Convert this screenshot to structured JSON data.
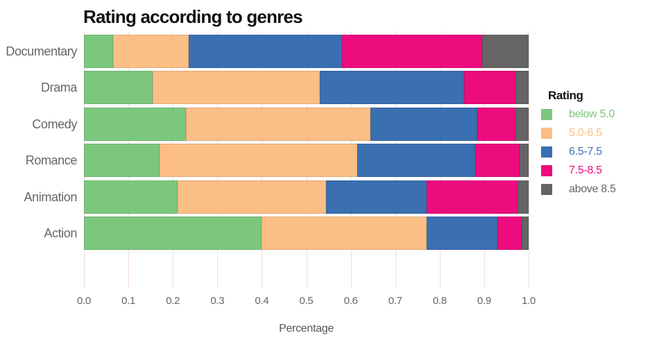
{
  "chart_data": {
    "type": "bar",
    "variant": "horizontal-stacked",
    "title": "Rating according to genres",
    "xlabel": "Percentage",
    "legend_title": "Rating",
    "legend_position": "right",
    "grid": true,
    "grid_color": "#F5DADA",
    "xlim": [
      0.0,
      1.0
    ],
    "x_ticks": [
      "0.0",
      "0.1",
      "0.2",
      "0.3",
      "0.4",
      "0.5",
      "0.6",
      "0.7",
      "0.8",
      "0.9",
      "1.0"
    ],
    "categories": [
      "Documentary",
      "Drama",
      "Comedy",
      "Romance",
      "Animation",
      "Action"
    ],
    "series": [
      {
        "name": "below 5.0",
        "color": "#7CC77E",
        "values": [
          0.065,
          0.155,
          0.23,
          0.17,
          0.21,
          0.4
        ]
      },
      {
        "name": "5.0-6.5",
        "color": "#FBBE85",
        "values": [
          0.17,
          0.375,
          0.415,
          0.445,
          0.335,
          0.37
        ]
      },
      {
        "name": "6.5-7.5",
        "color": "#3A6FB1",
        "values": [
          0.345,
          0.325,
          0.24,
          0.265,
          0.225,
          0.16
        ]
      },
      {
        "name": "7.5-8.5",
        "color": "#EC0C7E",
        "values": [
          0.315,
          0.115,
          0.085,
          0.1,
          0.205,
          0.055
        ]
      },
      {
        "name": "above 8.5",
        "color": "#656565",
        "values": [
          0.105,
          0.03,
          0.03,
          0.02,
          0.025,
          0.015
        ]
      }
    ],
    "text_color": "#666666",
    "title_color": "#111111"
  }
}
